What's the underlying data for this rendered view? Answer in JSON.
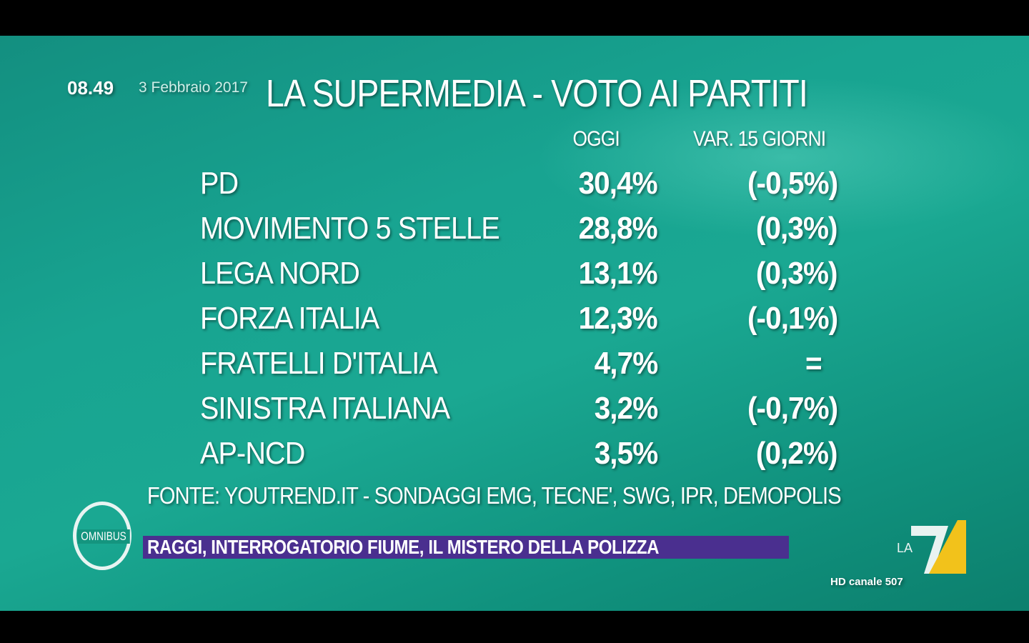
{
  "overlay": {
    "time": "08.49",
    "date": "3 Febbraio 2017"
  },
  "title": "LA SUPERMEDIA - VOTO AI PARTITI",
  "columns": {
    "today": "OGGI",
    "change": "VAR. 15 GIORNI"
  },
  "rows": [
    {
      "party": "PD",
      "value": "30,4%",
      "change": "(-0,5%)"
    },
    {
      "party": "MOVIMENTO 5 STELLE",
      "value": "28,8%",
      "change": "(0,3%)"
    },
    {
      "party": "LEGA NORD",
      "value": "13,1%",
      "change": "(0,3%)"
    },
    {
      "party": "FORZA ITALIA",
      "value": "12,3%",
      "change": "(-0,1%)"
    },
    {
      "party": "FRATELLI D'ITALIA",
      "value": "4,7%",
      "change": "="
    },
    {
      "party": "SINISTRA ITALIANA",
      "value": "3,2%",
      "change": "(-0,7%)"
    },
    {
      "party": "AP-NCD",
      "value": "3,5%",
      "change": "(0,2%)"
    }
  ],
  "source": "FONTE: YOUTREND.IT - SONDAGGI EMG, TECNE',  SWG, IPR, DEMOPOLIS",
  "ticker": "RAGGI, INTERROGATORIO FIUME, IL MISTERO DELLA POLIZZA",
  "show_logo": "OMNIBUS",
  "channel": {
    "logo": "LA 7",
    "hd": "HD canale 507"
  },
  "colors": {
    "background": "#18a491",
    "ticker": "#4a2f8f",
    "la7_yellow": "#f2c21b"
  }
}
